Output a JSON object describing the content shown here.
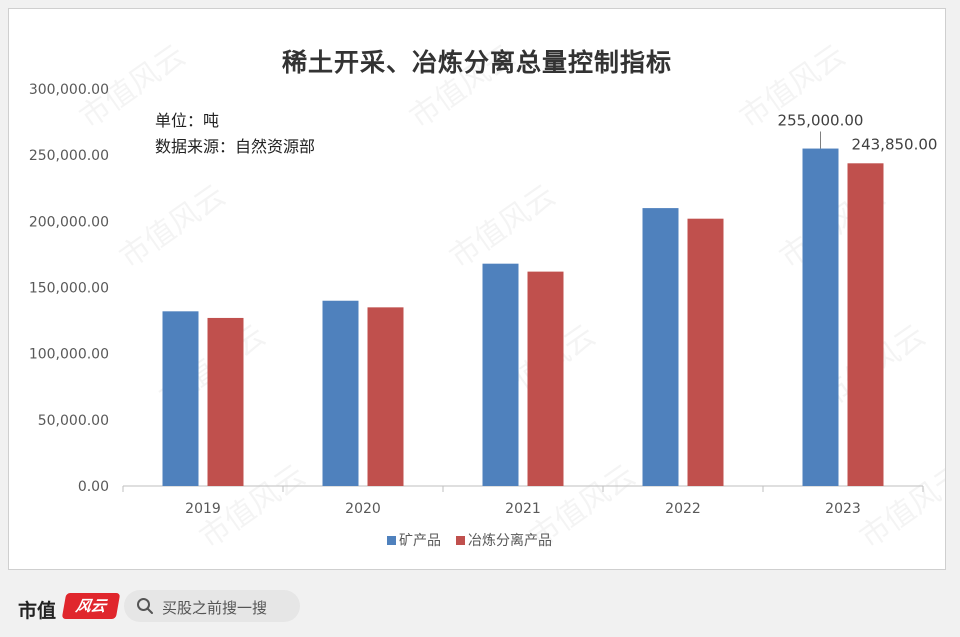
{
  "chart_data": {
    "type": "bar",
    "title": "稀土开采、冶炼分离总量控制指标",
    "notes": [
      "单位：吨",
      "数据来源：自然资源部"
    ],
    "categories": [
      "2019",
      "2020",
      "2021",
      "2022",
      "2023"
    ],
    "series": [
      {
        "name": "矿产品",
        "color": "#4f81bd",
        "values": [
          132000,
          140000,
          168000,
          210000,
          255000
        ]
      },
      {
        "name": "冶炼分离产品",
        "color": "#c0504d",
        "values": [
          127000,
          135000,
          162000,
          202000,
          243850
        ]
      }
    ],
    "data_labels": [
      {
        "series": 0,
        "index": 4,
        "text": "255,000.00"
      },
      {
        "series": 1,
        "index": 4,
        "text": "243,850.00"
      }
    ],
    "y_ticks": [
      "0.00",
      "50,000.00",
      "100,000.00",
      "150,000.00",
      "200,000.00",
      "250,000.00",
      "300,000.00"
    ],
    "ylim": [
      0,
      300000
    ],
    "y_step": 50000,
    "grid": false,
    "legend_position": "bottom"
  },
  "watermark": "市值风云",
  "footer": {
    "brand_name": "市值",
    "brand_logo_text": "风云",
    "search_placeholder": "买股之前搜一搜",
    "search_icon": "search-icon"
  }
}
